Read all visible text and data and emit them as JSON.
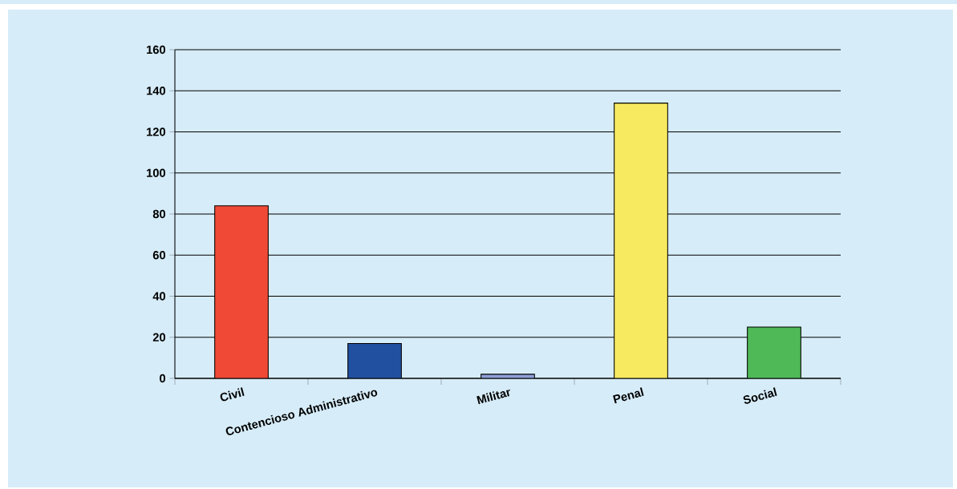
{
  "chart_data": {
    "type": "bar",
    "categories": [
      "Civil",
      "Contencioso Administrativo",
      "Militar",
      "Penal",
      "Social"
    ],
    "values": [
      84,
      17,
      2,
      134,
      25
    ],
    "colors": [
      "#f04a36",
      "#2150a0",
      "#8f9fd6",
      "#f7ea60",
      "#4fb957"
    ],
    "ylim": [
      0,
      160
    ],
    "yticks": [
      0,
      20,
      40,
      60,
      80,
      100,
      120,
      140,
      160
    ],
    "grid": "y"
  }
}
